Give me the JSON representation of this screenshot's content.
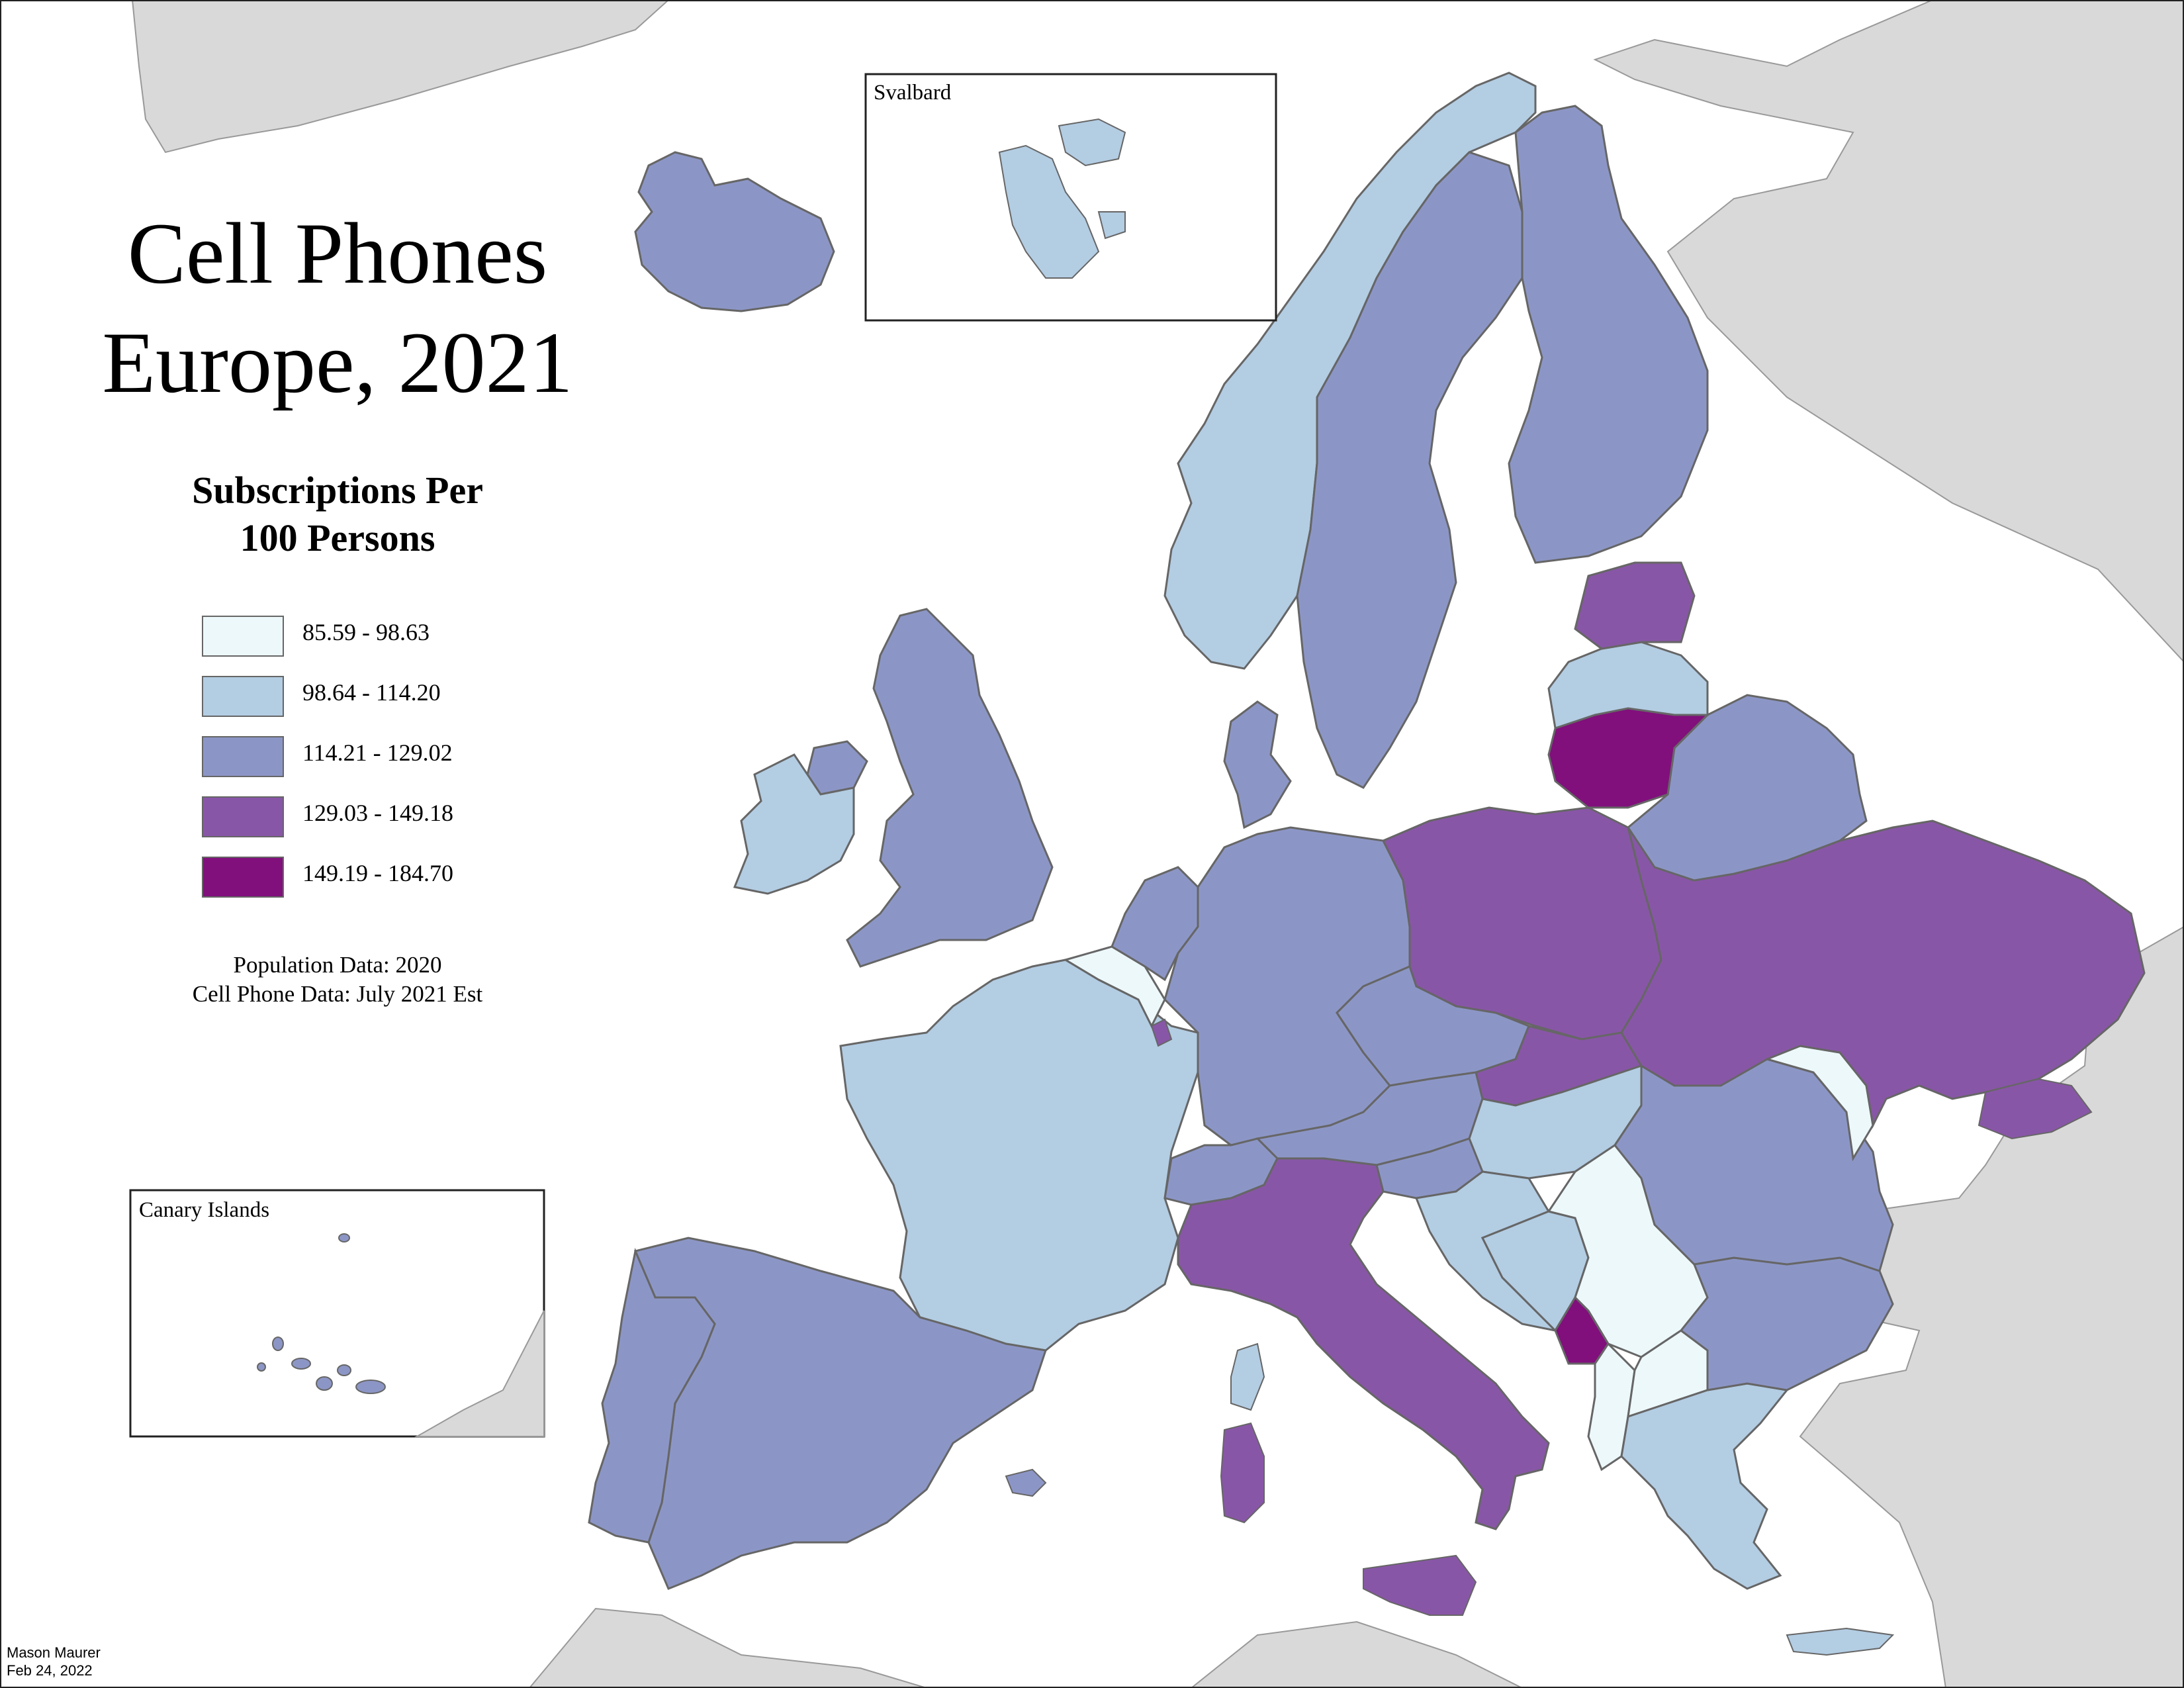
{
  "map": {
    "title_line1": "Cell Phones",
    "title_line2": "Europe, 2021",
    "subtitle_line1": "Subscriptions Per",
    "subtitle_line2": "100 Persons",
    "legend": [
      {
        "label": "85.59 - 98.63",
        "color": "#edf8fb"
      },
      {
        "label": "98.64 - 114.20",
        "color": "#b3cde3"
      },
      {
        "label": "114.21 - 129.02",
        "color": "#8c96c6"
      },
      {
        "label": "129.03 - 149.18",
        "color": "#8856a7"
      },
      {
        "label": "149.19 - 184.70",
        "color": "#810f7c"
      }
    ],
    "notes_line1": "Population Data: 2020",
    "notes_line2": "Cell Phone Data: July 2021 Est",
    "credit_line1": "Mason Maurer",
    "credit_line2": "Feb 24, 2022",
    "insets": {
      "svalbard": "Svalbard",
      "canary": "Canary Islands"
    },
    "colors": {
      "background_land": "#d9d9d9",
      "sea": "#ffffff",
      "border": "#666666"
    }
  }
}
